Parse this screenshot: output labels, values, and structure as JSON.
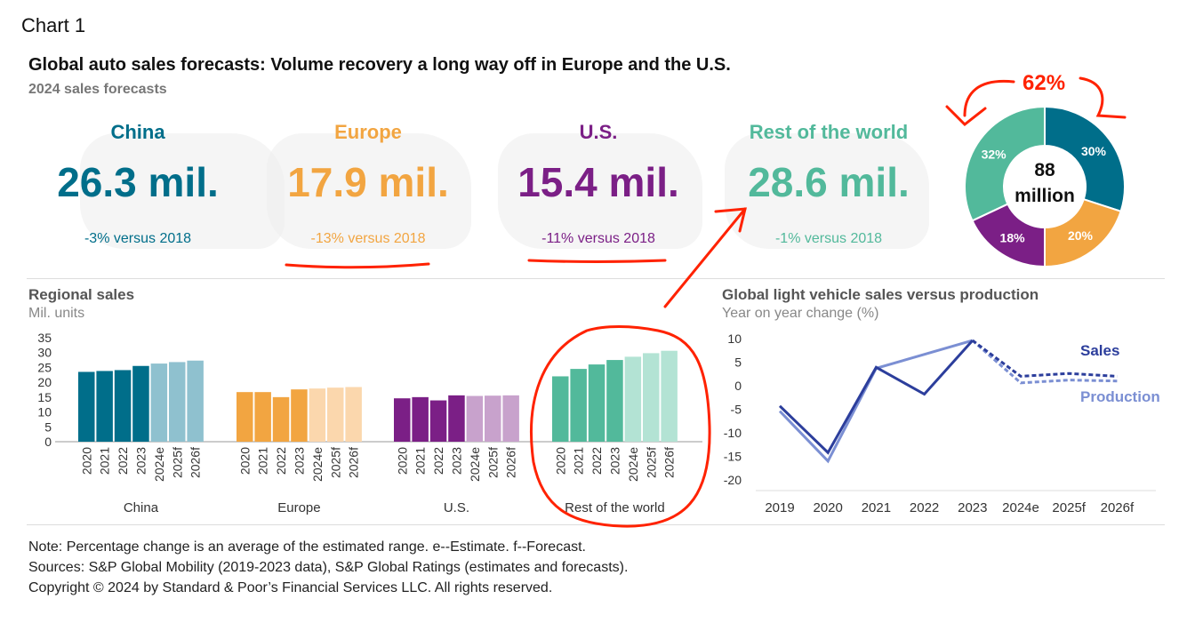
{
  "chart_label": "Chart 1",
  "title": "Global auto sales forecasts: Volume recovery a long way off in Europe and the U.S.",
  "subtitle": "2024 sales forecasts",
  "colors": {
    "china": "#006e8a",
    "china_light": "#8fc1cf",
    "europe": "#f2a541",
    "europe_light": "#fbd7ad",
    "us": "#7b1f86",
    "us_light": "#c8a2cc",
    "row": "#52b99b",
    "row_light": "#b3e3d4",
    "sales": "#2c3e9c",
    "production": "#7b8fd3",
    "annotation": "#ff2200"
  },
  "regions": [
    {
      "name": "China",
      "value": "26.3 mil.",
      "change": "-3% versus 2018",
      "color": "#006e8a"
    },
    {
      "name": "Europe",
      "value": "17.9 mil.",
      "change": "-13% versus 2018",
      "color": "#f2a541"
    },
    {
      "name": "U.S.",
      "value": "15.4 mil.",
      "change": "-11% versus 2018",
      "color": "#7b1f86"
    },
    {
      "name": "Rest of the world",
      "value": "28.6 mil.",
      "change": "-1% versus 2018",
      "color": "#52b99b"
    }
  ],
  "donut": {
    "center_line1": "88",
    "center_line2": "million",
    "annotation": "62%"
  },
  "regional": {
    "title": "Regional sales",
    "unit": "Mil. units"
  },
  "global": {
    "title": "Global light vehicle sales versus production",
    "unit": "Year on year change (%)"
  },
  "notes": [
    "Note: Percentage change is an average of the estimated range. e--Estimate. f--Forecast.",
    "Sources: S&P Global Mobility (2019-2023 data), S&P Global Ratings (estimates and forecasts).",
    "Copyright © 2024 by Standard & Poor’s Financial Services LLC. All rights reserved."
  ],
  "chart_data": [
    {
      "type": "pie",
      "slices": [
        {
          "label": "30%",
          "value": 30,
          "color": "#006e8a"
        },
        {
          "label": "20%",
          "value": 20,
          "color": "#f2a541"
        },
        {
          "label": "18%",
          "value": 18,
          "color": "#7b1f86"
        },
        {
          "label": "32%",
          "value": 32,
          "color": "#52b99b"
        }
      ]
    },
    {
      "type": "bar",
      "title": "Regional sales",
      "ylabel": "Mil. units",
      "ylim": [
        0,
        35
      ],
      "yticks": [
        0,
        5,
        10,
        15,
        20,
        25,
        30,
        35
      ],
      "categories": [
        "2020",
        "2021",
        "2022",
        "2023",
        "2024e",
        "2025f",
        "2026f"
      ],
      "groups": [
        {
          "name": "China",
          "values": [
            23.5,
            23.8,
            24.1,
            25.5,
            26.3,
            26.8,
            27.3
          ],
          "color": "#006e8a",
          "color_forecast": "#8fc1cf"
        },
        {
          "name": "Europe",
          "values": [
            16.7,
            16.7,
            15.0,
            17.6,
            17.9,
            18.2,
            18.4
          ],
          "color": "#f2a541",
          "color_forecast": "#fbd7ad"
        },
        {
          "name": "U.S.",
          "values": [
            14.6,
            15.0,
            13.9,
            15.6,
            15.4,
            15.5,
            15.6
          ],
          "color": "#7b1f86",
          "color_forecast": "#c8a2cc"
        },
        {
          "name": "Rest of the world",
          "values": [
            22.0,
            24.5,
            26.0,
            27.5,
            28.6,
            29.8,
            30.6
          ],
          "color": "#52b99b",
          "color_forecast": "#b3e3d4"
        }
      ]
    },
    {
      "type": "line",
      "title": "Global light vehicle sales versus production",
      "ylabel": "Year on year change (%)",
      "ylim": [
        -20,
        10
      ],
      "yticks": [
        10,
        5,
        0,
        -5,
        -10,
        -15,
        -20
      ],
      "x": [
        "2019",
        "2020",
        "2021",
        "2022",
        "2023",
        "2024e",
        "2025f",
        "2026f"
      ],
      "series": [
        {
          "name": "Sales",
          "values": [
            -4.3,
            -14.2,
            3.9,
            -1.8,
            9.6,
            2.0,
            2.6,
            2.0
          ],
          "color": "#2c3e9c"
        },
        {
          "name": "Production",
          "values": [
            -5.4,
            -16.0,
            3.7,
            null,
            9.6,
            0.6,
            1.2,
            1.0
          ],
          "color": "#7b8fd3"
        }
      ]
    }
  ]
}
